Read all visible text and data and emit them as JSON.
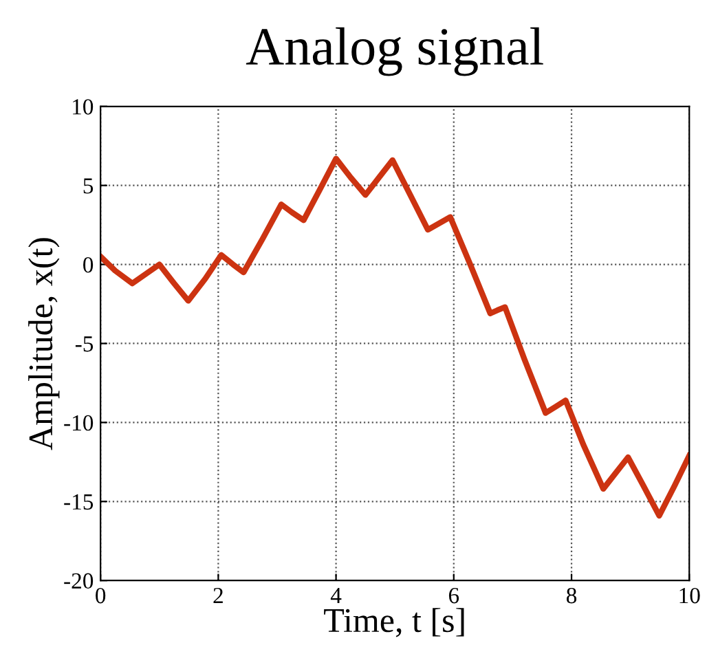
{
  "chart_data": {
    "type": "line",
    "title": "Analog signal",
    "xlabel": "Time, t [s]",
    "ylabel": "Amplitude, x(t)",
    "xlim": [
      0,
      10
    ],
    "ylim": [
      -20,
      10
    ],
    "xticks": [
      0,
      2,
      4,
      6,
      8,
      10
    ],
    "yticks": [
      -20,
      -15,
      -10,
      -5,
      0,
      5,
      10
    ],
    "grid": true,
    "line_style": "solid",
    "marker": "none",
    "series": [
      {
        "color": "#cc3311",
        "x": [
          0,
          0.25,
          0.54,
          0.77,
          1.0,
          1.25,
          1.49,
          1.78,
          2.05,
          2.25,
          2.43,
          2.75,
          3.07,
          3.25,
          3.45,
          3.72,
          4.0,
          4.25,
          4.5,
          4.73,
          4.96,
          5.26,
          5.56,
          5.75,
          5.94,
          6.28,
          6.62,
          6.74,
          6.87,
          7.2,
          7.56,
          7.73,
          7.9,
          8.2,
          8.54,
          8.75,
          8.96,
          9.22,
          9.49,
          9.75,
          10
        ],
        "values": [
          0.5,
          -0.4,
          -1.2,
          -0.6,
          0.0,
          -1.2,
          -2.3,
          -0.9,
          0.6,
          0.0,
          -0.5,
          1.6,
          3.8,
          3.3,
          2.8,
          4.7,
          6.7,
          5.5,
          4.4,
          5.5,
          6.6,
          4.4,
          2.2,
          2.6,
          3.0,
          0.0,
          -3.1,
          -2.9,
          -2.7,
          -6.0,
          -9.4,
          -9.0,
          -8.6,
          -11.4,
          -14.2,
          -13.2,
          -12.2,
          -14.0,
          -15.9,
          -14.0,
          -12.1
        ]
      }
    ]
  }
}
